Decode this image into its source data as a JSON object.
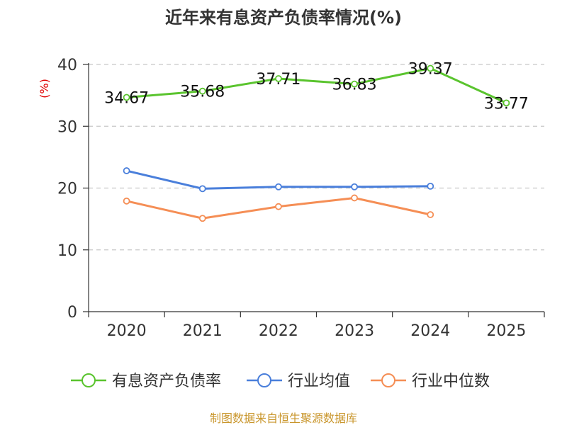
{
  "chart_data": {
    "type": "line",
    "title": "近年来有息资产负债率情况(%)",
    "ylabel": "(%)",
    "xlabel": "",
    "categories": [
      "2020",
      "2021",
      "2022",
      "2023",
      "2024",
      "2025"
    ],
    "ylim": [
      0,
      40
    ],
    "yticks": [
      0,
      10,
      20,
      30,
      40
    ],
    "grid": true,
    "legend_position": "bottom",
    "series": [
      {
        "name": "有息资产负债率",
        "color": "#5ac42e",
        "values": [
          34.67,
          35.68,
          37.71,
          36.83,
          39.37,
          33.77
        ],
        "labels": [
          "34.67",
          "35.68",
          "37.71",
          "36.83",
          "39.37",
          "33.77"
        ],
        "show_labels": true
      },
      {
        "name": "行业均值",
        "color": "#4a7fdb",
        "values": [
          22.8,
          19.9,
          20.2,
          20.2,
          20.3,
          null
        ],
        "show_labels": false
      },
      {
        "name": "行业中位数",
        "color": "#f58e55",
        "values": [
          17.9,
          15.1,
          17.0,
          18.4,
          15.7,
          null
        ],
        "show_labels": false
      }
    ],
    "source": "制图数据来自恒生聚源数据库"
  }
}
